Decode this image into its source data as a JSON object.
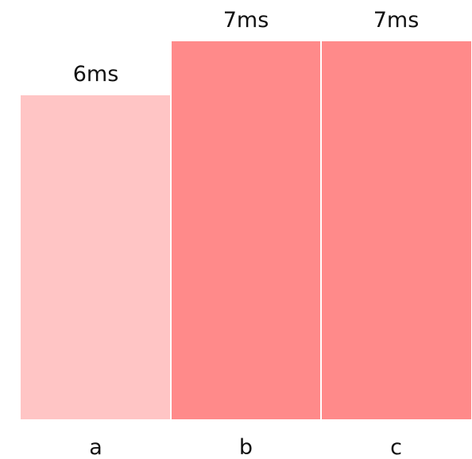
{
  "chart_data": {
    "type": "bar",
    "categories": [
      "a",
      "b",
      "c"
    ],
    "values": [
      6,
      7,
      7
    ],
    "value_labels": [
      "6ms",
      "7ms",
      "7ms"
    ],
    "unit": "ms",
    "ylim": [
      0,
      7
    ],
    "grid": false,
    "legend": "none",
    "colors": [
      "#ffc5c5",
      "#ff8a8a",
      "#ff8a8a"
    ]
  }
}
